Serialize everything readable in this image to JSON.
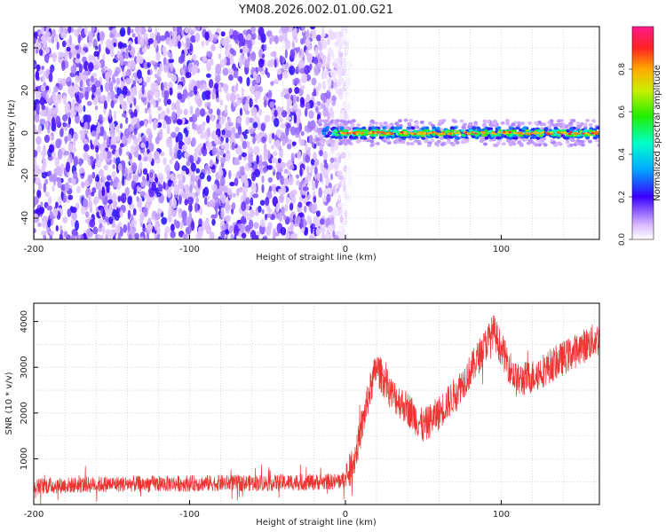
{
  "title": "YM08.2026.002.01.00.G21",
  "chart_data": [
    {
      "type": "heatmap",
      "xlabel": "Height of straight line (km)",
      "ylabel": "Frequency (Hz)",
      "xlim": [
        -200,
        163
      ],
      "ylim": [
        -50,
        50
      ],
      "x_ticks": [
        -200,
        -100,
        0,
        100
      ],
      "y_ticks": [
        -40,
        -20,
        0,
        20,
        40
      ],
      "colorbar": {
        "label": "Normalized spectral amplitude",
        "range": [
          0,
          1
        ],
        "ticks": [
          "0.0",
          "0.2",
          "0.4",
          "0.6",
          "0.8"
        ]
      },
      "features": {
        "noise_region_x": [
          -200,
          -5
        ],
        "signal_band_frequency": 0,
        "signal_band_x": [
          -20,
          163
        ],
        "signal_peak_amplitude": 0.95
      },
      "grid": true
    },
    {
      "type": "line",
      "xlabel": "Height of straight line (km)",
      "ylabel": "SNR (10 * v/v)",
      "xlim": [
        -200,
        163
      ],
      "ylim": [
        0,
        4400
      ],
      "x_ticks": [
        -200,
        -100,
        0,
        100
      ],
      "y_ticks": [
        1000,
        2000,
        3000,
        4000
      ],
      "series": [
        {
          "color": "#ee3333",
          "x": [
            -200,
            -180,
            -160,
            -140,
            -120,
            -100,
            -80,
            -60,
            -40,
            -20,
            -5,
            0,
            5,
            10,
            15,
            20,
            25,
            30,
            40,
            50,
            60,
            70,
            80,
            90,
            95,
            100,
            110,
            120,
            130,
            140,
            150,
            160,
            163
          ],
          "y": [
            400,
            420,
            440,
            450,
            450,
            460,
            470,
            470,
            480,
            490,
            500,
            550,
            900,
            1600,
            2400,
            3000,
            2700,
            2400,
            2100,
            1700,
            2000,
            2400,
            2900,
            3500,
            3800,
            3400,
            2700,
            2800,
            3000,
            3200,
            3400,
            3600,
            3600
          ]
        }
      ],
      "grid": true
    }
  ]
}
